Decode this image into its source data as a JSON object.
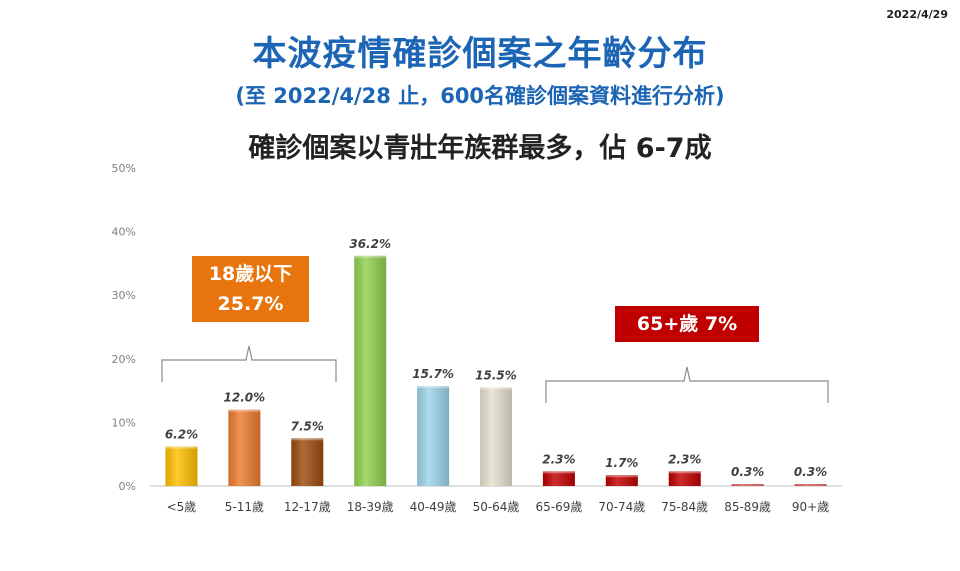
{
  "date": "2022/4/29",
  "title": "本波疫情確診個案之年齡分布",
  "subtitle": "(至 2022/4/28 止，600名確診個案資料進行分析)",
  "headline": "確診個案以青壯年族群最多，佔 6-7成",
  "callouts": {
    "under18_line1": "18歲以下",
    "under18_line2": "25.7%",
    "over65": "65+歲 7%"
  },
  "colors": {
    "title": "#1c64b4",
    "under18_box": "#e8740e",
    "over65_box": "#c00000"
  },
  "chart_data": {
    "type": "bar",
    "ylim": [
      0,
      50
    ],
    "yticks": [
      "0%",
      "10%",
      "20%",
      "30%",
      "40%",
      "50%"
    ],
    "grid": false,
    "categories": [
      "<5歲",
      "5-11歲",
      "12-17歲",
      "18-39歲",
      "40-49歲",
      "50-64歲",
      "65-69歲",
      "70-74歲",
      "75-84歲",
      "85-89歲",
      "90+歲"
    ],
    "values": [
      6.2,
      12.0,
      7.5,
      36.2,
      15.7,
      15.5,
      2.3,
      1.7,
      2.3,
      0.3,
      0.3
    ],
    "data_labels": [
      "6.2%",
      "12.0%",
      "7.5%",
      "36.2%",
      "15.7%",
      "15.5%",
      "2.3%",
      "1.7%",
      "2.3%",
      "0.3%",
      "0.3%"
    ],
    "bar_colors": [
      "#ffc000",
      "#ed7d31",
      "#9e4b0f",
      "#92d050",
      "#9dd3ea",
      "#e6e1cf",
      "#c00000",
      "#c00000",
      "#c00000",
      "#c00000",
      "#c00000"
    ]
  }
}
